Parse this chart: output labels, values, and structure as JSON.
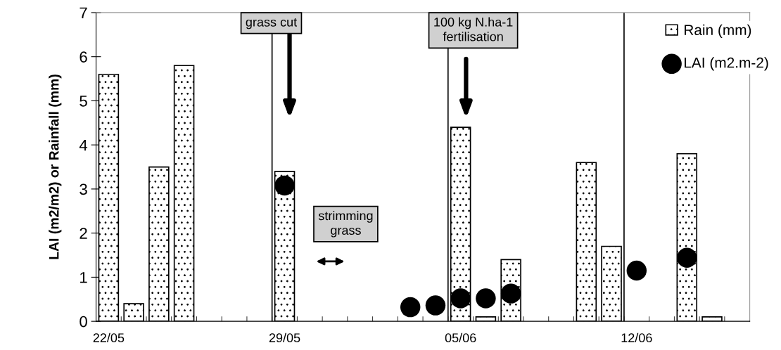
{
  "chart_data": {
    "type": "bar",
    "ylabel": "LAI (m2/m2) or Rainfall (mm)",
    "categories": [
      "22/05",
      null,
      null,
      null,
      null,
      null,
      null,
      "29/05",
      null,
      null,
      null,
      null,
      null,
      null,
      "05/06",
      null,
      null,
      null,
      null,
      null,
      null,
      "12/06",
      null,
      null,
      null,
      null
    ],
    "series": [
      {
        "name": "Rain (mm)",
        "color": "#000000",
        "values": [
          5.6,
          0.4,
          3.5,
          5.8,
          null,
          null,
          null,
          3.4,
          null,
          null,
          null,
          null,
          null,
          null,
          4.4,
          0.1,
          1.4,
          null,
          null,
          3.6,
          1.7,
          null,
          null,
          3.8,
          0.1,
          null
        ]
      },
      {
        "name": "LAI (m2.m-2)",
        "type": "scatter",
        "color": "#000000",
        "values": [
          null,
          null,
          null,
          null,
          null,
          null,
          null,
          3.08,
          null,
          null,
          null,
          null,
          0.32,
          0.36,
          0.52,
          0.52,
          0.63,
          null,
          null,
          null,
          null,
          1.15,
          null,
          1.44,
          null,
          null
        ]
      }
    ],
    "ylim": [
      0,
      7
    ],
    "yticks": [
      0,
      1,
      2,
      3,
      4,
      5,
      6,
      7
    ],
    "annotations": [
      "grass cut",
      "100 kg N.ha-1\nfertilisation",
      "strimming\ngrass"
    ],
    "marker": "circle",
    "legend": "top right",
    "grid": false
  }
}
